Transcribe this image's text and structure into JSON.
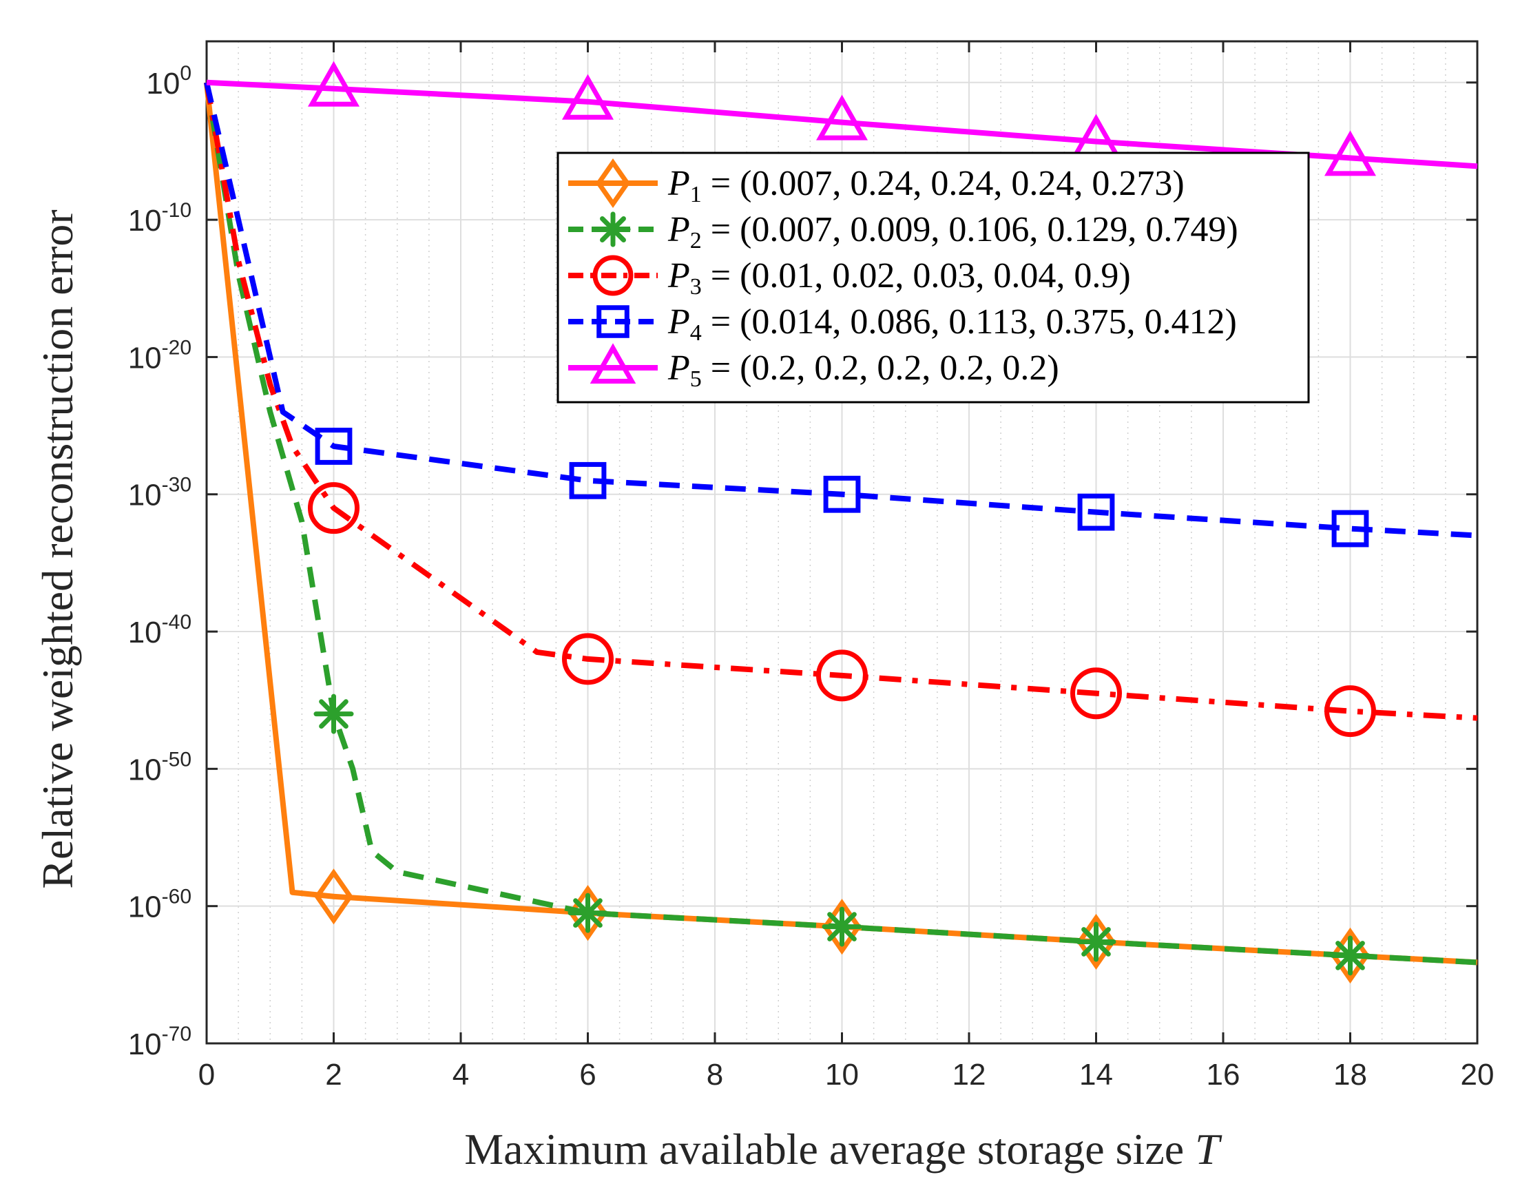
{
  "chart_data": {
    "type": "line",
    "title": "",
    "xlabel": "Maximum available average storage size",
    "xlabel_var": "T",
    "ylabel": "Relative weighted reconstruction error",
    "xlim": [
      0,
      20
    ],
    "ylim_log10": [
      -70,
      3
    ],
    "yscale": "log",
    "grid": true,
    "minor_grid_x": true,
    "legend_position": "top-center-right",
    "xticks": [
      0,
      2,
      4,
      6,
      8,
      10,
      12,
      14,
      16,
      18,
      20
    ],
    "xtick_labels": [
      "0",
      "2",
      "4",
      "6",
      "8",
      "10",
      "12",
      "14",
      "16",
      "18",
      "20"
    ],
    "yticks_log10": [
      0,
      -10,
      -20,
      -30,
      -40,
      -50,
      -60,
      -70
    ],
    "ytick_labels": [
      {
        "base": "10",
        "exp": "0"
      },
      {
        "base": "10",
        "exp": "-10"
      },
      {
        "base": "10",
        "exp": "-20"
      },
      {
        "base": "10",
        "exp": "-30"
      },
      {
        "base": "10",
        "exp": "-40"
      },
      {
        "base": "10",
        "exp": "-50"
      },
      {
        "base": "10",
        "exp": "-60"
      },
      {
        "base": "10",
        "exp": "-70"
      }
    ],
    "series": [
      {
        "name": "P1",
        "label_sym": "P",
        "label_sub": "1",
        "label_rest": " = (0.007, 0.24, 0.24, 0.24, 0.273)",
        "color": "#ff7f0e",
        "line": "solid",
        "marker": "diamond",
        "x": [
          0,
          1.35,
          2,
          6,
          10,
          14,
          18,
          20
        ],
        "log10_y": [
          0,
          -59,
          -59.3,
          -60.5,
          -61.5,
          -62.6,
          -63.6,
          -64.1
        ],
        "marker_x": [
          2,
          6,
          10,
          14,
          18
        ],
        "marker_log10_y": [
          -59.3,
          -60.5,
          -61.5,
          -62.6,
          -63.6
        ]
      },
      {
        "name": "P2",
        "label_sym": "P",
        "label_sub": "2",
        "label_rest": " = (0.007, 0.009, 0.106, 0.129, 0.749)",
        "color": "#2ca02c",
        "line": "dashed",
        "marker": "asterisk",
        "x": [
          0,
          0.5,
          1,
          1.5,
          2,
          2.3,
          2.6,
          3,
          6,
          10,
          14,
          18,
          20
        ],
        "log10_y": [
          0,
          -14,
          -24,
          -32,
          -46,
          -50,
          -56,
          -57.5,
          -60.5,
          -61.5,
          -62.6,
          -63.6,
          -64.1
        ],
        "marker_x": [
          2,
          6,
          10,
          14,
          18
        ],
        "marker_log10_y": [
          -46,
          -60.5,
          -61.5,
          -62.6,
          -63.6
        ]
      },
      {
        "name": "P3",
        "label_sym": "P",
        "label_sub": "3",
        "label_rest": " = (0.01, 0.02, 0.03, 0.04, 0.9)",
        "color": "#ff0000",
        "line": "dashdot",
        "marker": "circle",
        "x": [
          0,
          0.5,
          1,
          1.35,
          2,
          5.2,
          6,
          10,
          14,
          18,
          20
        ],
        "log10_y": [
          0,
          -13,
          -22,
          -26.5,
          -31,
          -41.5,
          -42,
          -43.2,
          -44.5,
          -45.8,
          -46.3
        ],
        "marker_x": [
          2,
          6,
          10,
          14,
          18
        ],
        "marker_log10_y": [
          -31,
          -42,
          -43.2,
          -44.5,
          -45.8
        ],
        "marker_size": 34
      },
      {
        "name": "P4",
        "label_sym": "P",
        "label_sub": "4",
        "label_rest": " = (0.014, 0.086, 0.113, 0.375, 0.412)",
        "color": "#0000ff",
        "line": "dashed",
        "marker": "square",
        "x": [
          0,
          0.5,
          1,
          1.2,
          2,
          6,
          10,
          14,
          18,
          20
        ],
        "log10_y": [
          0,
          -10,
          -20,
          -24,
          -26.5,
          -29,
          -30,
          -31.3,
          -32.5,
          -33
        ],
        "marker_x": [
          2,
          6,
          10,
          14,
          18
        ],
        "marker_log10_y": [
          -26.5,
          -29,
          -30,
          -31.3,
          -32.5
        ]
      },
      {
        "name": "P5",
        "label_sym": "P",
        "label_sub": "5",
        "label_rest": " = (0.2, 0.2, 0.2, 0.2, 0.2)",
        "color": "#ff00ff",
        "line": "solid",
        "marker": "triangle",
        "x": [
          0,
          2,
          6,
          10,
          14,
          18,
          20
        ],
        "log10_y": [
          0,
          -0.45,
          -1.4,
          -2.9,
          -4.3,
          -5.5,
          -6.1
        ],
        "marker_x": [
          2,
          6,
          10,
          14,
          18
        ],
        "marker_log10_y": [
          -0.45,
          -1.4,
          -2.9,
          -4.3,
          -5.5
        ]
      }
    ]
  }
}
